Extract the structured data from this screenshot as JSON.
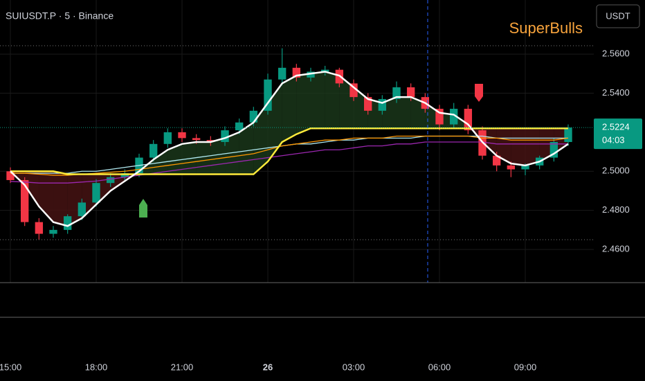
{
  "chart_data": {
    "type": "candlestick",
    "title": "SUIUSDT.P · 5 · Binance",
    "indicator": "SuperBulls",
    "currency_button": "USDT",
    "last_price": 2.5224,
    "countdown": "04:03",
    "x": [
      0,
      0.5,
      1,
      1.5,
      2,
      2.5,
      3,
      3.5,
      4,
      4.5,
      5,
      5.5,
      6,
      6.5,
      7,
      7.5,
      8,
      8.5,
      9,
      9.5,
      10,
      10.5,
      11,
      11.5,
      12,
      12.5,
      13,
      13.5,
      14,
      14.5,
      15,
      15.5,
      16,
      16.5,
      17,
      17.5,
      18,
      18.5,
      19,
      19.5
    ],
    "open": [
      2.5,
      2.4955,
      2.474,
      2.468,
      2.47,
      2.477,
      2.484,
      2.494,
      2.497,
      2.499,
      2.507,
      2.514,
      2.52,
      2.517,
      2.516,
      2.515,
      2.521,
      2.525,
      2.531,
      2.547,
      2.553,
      2.548,
      2.551,
      2.552,
      2.545,
      2.538,
      2.531,
      2.537,
      2.543,
      2.538,
      2.532,
      2.524,
      2.532,
      2.521,
      2.508,
      2.503,
      2.501,
      2.503,
      2.507,
      2.515
    ],
    "high": [
      2.502,
      2.497,
      2.476,
      2.472,
      2.478,
      2.486,
      2.496,
      2.499,
      2.501,
      2.509,
      2.516,
      2.522,
      2.522,
      2.519,
      2.518,
      2.523,
      2.527,
      2.533,
      2.55,
      2.563,
      2.555,
      2.553,
      2.554,
      2.553,
      2.547,
      2.54,
      2.539,
      2.546,
      2.545,
      2.54,
      2.534,
      2.535,
      2.534,
      2.523,
      2.51,
      2.505,
      2.504,
      2.508,
      2.517,
      2.524
    ],
    "low": [
      2.494,
      2.472,
      2.465,
      2.466,
      2.468,
      2.475,
      2.482,
      2.492,
      2.495,
      2.497,
      2.505,
      2.512,
      2.515,
      2.514,
      2.513,
      2.513,
      2.519,
      2.523,
      2.529,
      2.544,
      2.546,
      2.546,
      2.549,
      2.543,
      2.536,
      2.529,
      2.529,
      2.535,
      2.536,
      2.53,
      2.521,
      2.522,
      2.519,
      2.506,
      2.5,
      2.497,
      2.498,
      2.501,
      2.505,
      2.513
    ],
    "close": [
      2.4955,
      2.474,
      2.468,
      2.47,
      2.477,
      2.484,
      2.494,
      2.497,
      2.499,
      2.507,
      2.514,
      2.52,
      2.517,
      2.516,
      2.515,
      2.521,
      2.525,
      2.531,
      2.547,
      2.553,
      2.548,
      2.551,
      2.552,
      2.545,
      2.538,
      2.531,
      2.537,
      2.543,
      2.538,
      2.532,
      2.524,
      2.532,
      2.521,
      2.508,
      2.503,
      2.501,
      2.503,
      2.507,
      2.515,
      2.5224
    ],
    "up_color": "#089981",
    "down_color": "#f23645",
    "overlays": [
      {
        "color": "#b2ebf2",
        "values": [
          2.499,
          2.499,
          2.499,
          2.499,
          2.499,
          2.5,
          2.5,
          2.501,
          2.502,
          2.503,
          2.504,
          2.505,
          2.506,
          2.507,
          2.508,
          2.509,
          2.51,
          2.511,
          2.512,
          2.513,
          2.514,
          2.514,
          2.515,
          2.516,
          2.516,
          2.517,
          2.517,
          2.517,
          2.517,
          2.518,
          2.518,
          2.518,
          2.518,
          2.518,
          2.517,
          2.517,
          2.517,
          2.517,
          2.517,
          2.517
        ]
      },
      {
        "color": "#9c27b0",
        "values": [
          2.4948,
          2.4945,
          2.494,
          2.494,
          2.494,
          2.4945,
          2.495,
          2.496,
          2.497,
          2.498,
          2.499,
          2.5,
          2.501,
          2.502,
          2.503,
          2.504,
          2.505,
          2.506,
          2.507,
          2.508,
          2.509,
          2.51,
          2.511,
          2.511,
          2.512,
          2.513,
          2.513,
          2.514,
          2.514,
          2.515,
          2.515,
          2.515,
          2.515,
          2.515,
          2.514,
          2.514,
          2.514,
          2.514,
          2.514,
          2.514
        ]
      },
      {
        "color": "#ff9800",
        "values": [
          2.499,
          2.499,
          2.4985,
          2.498,
          2.498,
          2.4985,
          2.499,
          2.4995,
          2.5,
          2.501,
          2.502,
          2.503,
          2.504,
          2.505,
          2.506,
          2.507,
          2.508,
          2.509,
          2.511,
          2.513,
          2.514,
          2.515,
          2.516,
          2.516,
          2.517,
          2.517,
          2.517,
          2.518,
          2.518,
          2.518,
          2.518,
          2.518,
          2.518,
          2.517,
          2.517,
          2.516,
          2.516,
          2.516,
          2.516,
          2.517
        ]
      },
      {
        "color": "#ffeb3b",
        "values": [
          2.5,
          2.5,
          2.5,
          2.5,
          2.4985,
          2.4985,
          2.4985,
          2.4985,
          2.4985,
          2.4985,
          2.4985,
          2.4985,
          2.4985,
          2.4985,
          2.4985,
          2.4985,
          2.4985,
          2.4985,
          2.505,
          2.515,
          2.519,
          2.522,
          2.522,
          2.522,
          2.522,
          2.522,
          2.522,
          2.522,
          2.522,
          2.522,
          2.522,
          2.522,
          2.522,
          2.522,
          2.522,
          2.522,
          2.522,
          2.522,
          2.522,
          2.522
        ]
      },
      {
        "color": "#ffffff",
        "values": [
          2.5,
          2.493,
          2.482,
          2.474,
          2.472,
          2.476,
          2.483,
          2.49,
          2.495,
          2.5,
          2.506,
          2.511,
          2.514,
          2.515,
          2.515,
          2.517,
          2.52,
          2.525,
          2.535,
          2.545,
          2.549,
          2.55,
          2.551,
          2.549,
          2.543,
          2.537,
          2.535,
          2.538,
          2.538,
          2.535,
          2.53,
          2.529,
          2.524,
          2.515,
          2.508,
          2.504,
          2.503,
          2.505,
          2.509,
          2.514
        ]
      }
    ],
    "fill_up_color": "#1b3a1b",
    "fill_down_color": "#4a1414",
    "ylim": [
      2.443,
      2.5877
    ],
    "yticks": [
      {
        "value": 2.56,
        "label": "2.5600"
      },
      {
        "value": 2.54,
        "label": "2.5400"
      },
      {
        "value": 2.5,
        "label": "2.5000"
      },
      {
        "value": 2.48,
        "label": "2.4800"
      },
      {
        "value": 2.46,
        "label": "2.4600"
      }
    ],
    "xlim": [
      -0.363,
      20.395
    ],
    "xticks": [
      {
        "value": 0,
        "label": "15:00"
      },
      {
        "value": 3,
        "label": "18:00"
      },
      {
        "value": 6,
        "label": "21:00"
      },
      {
        "value": 9,
        "label": "26"
      },
      {
        "value": 12,
        "label": "03:00"
      },
      {
        "value": 15,
        "label": "06:00"
      },
      {
        "value": 18,
        "label": "09:00"
      }
    ],
    "grid": true
  }
}
